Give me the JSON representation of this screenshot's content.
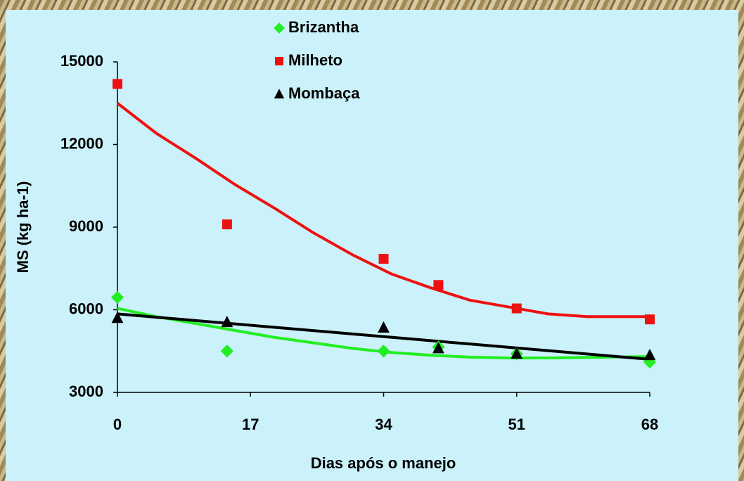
{
  "chart_data": {
    "type": "scatter",
    "xlabel": "Dias após o manejo",
    "ylabel": "MS (kg ha-1)",
    "xlim": [
      0,
      68
    ],
    "xticks": [
      0,
      17,
      34,
      51,
      68
    ],
    "ylim": [
      3000,
      15000
    ],
    "yticks": [
      3000,
      6000,
      9000,
      12000,
      15000
    ],
    "x": [
      0,
      14,
      34,
      41,
      51,
      68
    ],
    "trend_x": [
      0,
      5,
      10,
      15,
      20,
      25,
      30,
      35,
      40,
      45,
      50,
      55,
      60,
      68
    ],
    "legend": "top",
    "series": [
      {
        "name": "Brizantha",
        "color": "#22ee22",
        "marker": "diamond",
        "values": [
          6450,
          4500,
          4500,
          4650,
          4400,
          4100
        ],
        "trend": [
          6050,
          5750,
          5500,
          5250,
          5000,
          4800,
          4600,
          4450,
          4350,
          4280,
          4250,
          4250,
          4270,
          4300
        ]
      },
      {
        "name": "Milheto",
        "color": "#ee1111",
        "marker": "square",
        "values": [
          14200,
          9100,
          7850,
          6900,
          6050,
          5650
        ],
        "trend": [
          13500,
          12400,
          11500,
          10550,
          9700,
          8800,
          8000,
          7300,
          6800,
          6350,
          6100,
          5850,
          5750,
          5750
        ]
      },
      {
        "name": "Mombaça",
        "color": "#000000",
        "marker": "triangle",
        "values": [
          5700,
          5550,
          5350,
          4600,
          4400,
          4350
        ],
        "trend": [
          5850,
          5729,
          5607,
          5486,
          5365,
          5243,
          5122,
          5001,
          4879,
          4758,
          4637,
          4515,
          4394,
          4200
        ]
      }
    ]
  }
}
